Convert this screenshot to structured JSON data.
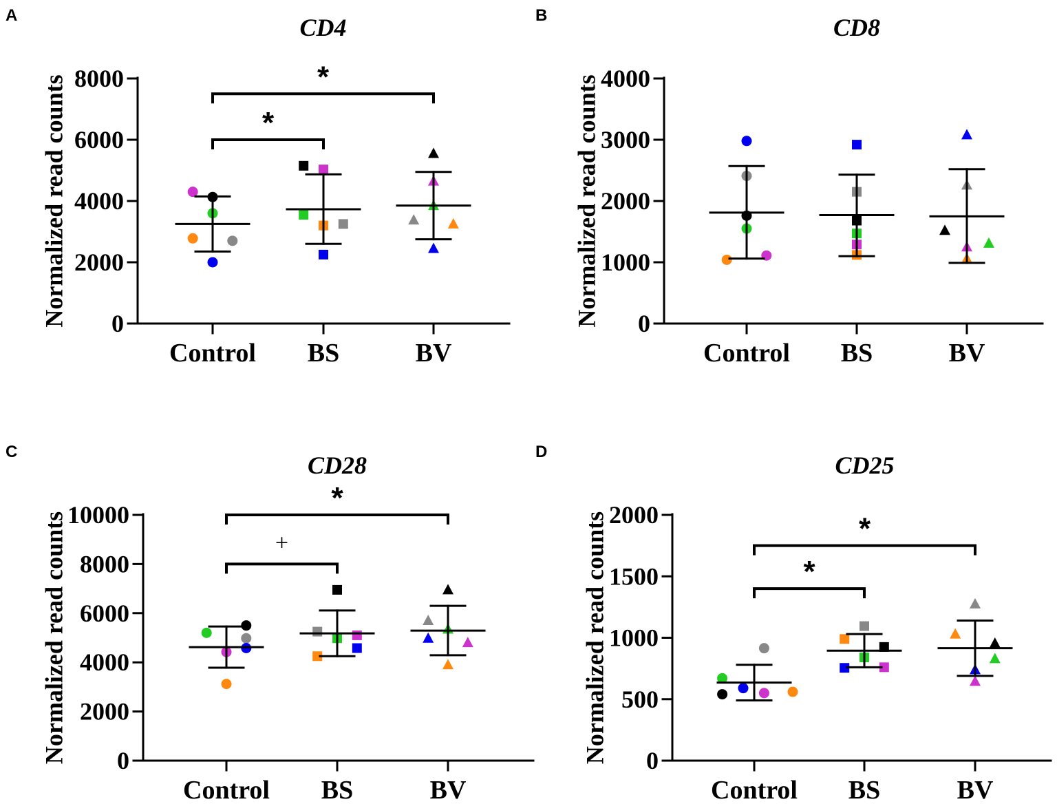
{
  "figure": {
    "panels": [
      "A",
      "B",
      "C",
      "D"
    ]
  },
  "chart_data": [
    {
      "panel": "A",
      "type": "scatter",
      "title": "CD4",
      "ylabel": "Normalized read counts",
      "xlabel": "",
      "ylim": [
        0,
        8000
      ],
      "yticks": [
        0,
        2000,
        4000,
        6000,
        8000
      ],
      "categories": [
        "Control",
        "BS",
        "BV"
      ],
      "groups": [
        {
          "name": "Control",
          "marker": "circle",
          "mean": 3250,
          "sd_low": 2350,
          "sd_high": 4150,
          "points": [
            {
              "color": "#cc33cc",
              "value": 4300,
              "offset": -0.18
            },
            {
              "color": "#000000",
              "value": 4130,
              "offset": 0.0
            },
            {
              "color": "#22cc22",
              "value": 3600,
              "offset": 0.0
            },
            {
              "color": "#ff8811",
              "value": 2780,
              "offset": -0.18
            },
            {
              "color": "#888888",
              "value": 2700,
              "offset": 0.18
            },
            {
              "color": "#0000ee",
              "value": 2000,
              "offset": 0.0
            }
          ]
        },
        {
          "name": "BS",
          "marker": "square",
          "mean": 3730,
          "sd_low": 2600,
          "sd_high": 4870,
          "points": [
            {
              "color": "#000000",
              "value": 5150,
              "offset": -0.18
            },
            {
              "color": "#cc33cc",
              "value": 5030,
              "offset": 0.0
            },
            {
              "color": "#22cc22",
              "value": 3550,
              "offset": -0.18
            },
            {
              "color": "#ff8811",
              "value": 3200,
              "offset": 0.0
            },
            {
              "color": "#888888",
              "value": 3250,
              "offset": 0.18
            },
            {
              "color": "#0000ee",
              "value": 2250,
              "offset": 0.0
            }
          ]
        },
        {
          "name": "BV",
          "marker": "triangle",
          "mean": 3850,
          "sd_low": 2750,
          "sd_high": 4950,
          "points": [
            {
              "color": "#000000",
              "value": 5550,
              "offset": 0.0
            },
            {
              "color": "#cc33cc",
              "value": 4650,
              "offset": 0.0
            },
            {
              "color": "#22cc22",
              "value": 3850,
              "offset": 0.0
            },
            {
              "color": "#888888",
              "value": 3380,
              "offset": -0.18
            },
            {
              "color": "#ff8811",
              "value": 3250,
              "offset": 0.18
            },
            {
              "color": "#0000ee",
              "value": 2450,
              "offset": 0.0
            }
          ]
        }
      ],
      "annotations": [
        {
          "from": "Control",
          "to": "BS",
          "label": "*",
          "level": 6000
        },
        {
          "from": "Control",
          "to": "BV",
          "label": "*",
          "level": 7500
        }
      ]
    },
    {
      "panel": "B",
      "type": "scatter",
      "title": "CD8",
      "ylabel": "Normalized read counts",
      "xlabel": "",
      "ylim": [
        0,
        4000
      ],
      "yticks": [
        0,
        1000,
        2000,
        3000,
        4000
      ],
      "categories": [
        "Control",
        "BS",
        "BV"
      ],
      "groups": [
        {
          "name": "Control",
          "marker": "circle",
          "mean": 1810,
          "sd_low": 1060,
          "sd_high": 2570,
          "points": [
            {
              "color": "#0000ee",
              "value": 2980,
              "offset": 0.0
            },
            {
              "color": "#888888",
              "value": 2410,
              "offset": 0.0
            },
            {
              "color": "#000000",
              "value": 1760,
              "offset": 0.0
            },
            {
              "color": "#22cc22",
              "value": 1550,
              "offset": 0.0
            },
            {
              "color": "#cc33cc",
              "value": 1110,
              "offset": 0.18
            },
            {
              "color": "#ff8811",
              "value": 1040,
              "offset": -0.18
            }
          ]
        },
        {
          "name": "BS",
          "marker": "square",
          "mean": 1770,
          "sd_low": 1100,
          "sd_high": 2430,
          "points": [
            {
              "color": "#0000ee",
              "value": 2920,
              "offset": 0.0
            },
            {
              "color": "#888888",
              "value": 2150,
              "offset": 0.0
            },
            {
              "color": "#000000",
              "value": 1680,
              "offset": 0.0
            },
            {
              "color": "#22cc22",
              "value": 1470,
              "offset": 0.0
            },
            {
              "color": "#cc33cc",
              "value": 1290,
              "offset": 0.0
            },
            {
              "color": "#ff8811",
              "value": 1120,
              "offset": 0.0
            }
          ]
        },
        {
          "name": "BV",
          "marker": "triangle",
          "mean": 1750,
          "sd_low": 990,
          "sd_high": 2520,
          "points": [
            {
              "color": "#0000ee",
              "value": 3080,
              "offset": 0.0
            },
            {
              "color": "#888888",
              "value": 2260,
              "offset": 0.0
            },
            {
              "color": "#000000",
              "value": 1520,
              "offset": -0.2
            },
            {
              "color": "#22cc22",
              "value": 1310,
              "offset": 0.2
            },
            {
              "color": "#cc33cc",
              "value": 1250,
              "offset": 0.0
            },
            {
              "color": "#ff8811",
              "value": 1060,
              "offset": 0.0
            }
          ]
        }
      ],
      "annotations": []
    },
    {
      "panel": "C",
      "type": "scatter",
      "title": "CD28",
      "ylabel": "Normalized read counts",
      "xlabel": "",
      "ylim": [
        0,
        10000
      ],
      "yticks": [
        0,
        2000,
        4000,
        6000,
        8000,
        10000
      ],
      "categories": [
        "Control",
        "BS",
        "BV"
      ],
      "groups": [
        {
          "name": "Control",
          "marker": "circle",
          "mean": 4620,
          "sd_low": 3780,
          "sd_high": 5460,
          "points": [
            {
              "color": "#000000",
              "value": 5500,
              "offset": 0.18
            },
            {
              "color": "#22cc22",
              "value": 5200,
              "offset": -0.18
            },
            {
              "color": "#888888",
              "value": 4980,
              "offset": 0.18
            },
            {
              "color": "#0000ee",
              "value": 4580,
              "offset": 0.18
            },
            {
              "color": "#cc33cc",
              "value": 4420,
              "offset": 0.0
            },
            {
              "color": "#ff8811",
              "value": 3120,
              "offset": 0.0
            }
          ]
        },
        {
          "name": "BS",
          "marker": "square",
          "mean": 5180,
          "sd_low": 4250,
          "sd_high": 6110,
          "points": [
            {
              "color": "#000000",
              "value": 6950,
              "offset": 0.0
            },
            {
              "color": "#888888",
              "value": 5250,
              "offset": -0.18
            },
            {
              "color": "#cc33cc",
              "value": 5100,
              "offset": 0.18
            },
            {
              "color": "#22cc22",
              "value": 4980,
              "offset": 0.0
            },
            {
              "color": "#0000ee",
              "value": 4580,
              "offset": 0.18
            },
            {
              "color": "#ff8811",
              "value": 4250,
              "offset": -0.18
            }
          ]
        },
        {
          "name": "BV",
          "marker": "triangle",
          "mean": 5290,
          "sd_low": 4290,
          "sd_high": 6300,
          "points": [
            {
              "color": "#000000",
              "value": 6950,
              "offset": 0.0
            },
            {
              "color": "#888888",
              "value": 5700,
              "offset": -0.18
            },
            {
              "color": "#22cc22",
              "value": 5350,
              "offset": 0.0
            },
            {
              "color": "#0000ee",
              "value": 4980,
              "offset": -0.18
            },
            {
              "color": "#cc33cc",
              "value": 4800,
              "offset": 0.18
            },
            {
              "color": "#ff8811",
              "value": 3900,
              "offset": 0.0
            }
          ]
        }
      ],
      "annotations": [
        {
          "from": "Control",
          "to": "BS",
          "label": "+",
          "level": 8000
        },
        {
          "from": "Control",
          "to": "BV",
          "label": "*",
          "level": 10000
        }
      ]
    },
    {
      "panel": "D",
      "type": "scatter",
      "title": "CD25",
      "ylabel": "Normalized read counts",
      "xlabel": "",
      "ylim": [
        0,
        2000
      ],
      "yticks": [
        0,
        500,
        1000,
        1500,
        2000
      ],
      "categories": [
        "Control",
        "BS",
        "BV"
      ],
      "groups": [
        {
          "name": "Control",
          "marker": "circle",
          "mean": 635,
          "sd_low": 490,
          "sd_high": 780,
          "points": [
            {
              "color": "#888888",
              "value": 915,
              "offset": 0.09
            },
            {
              "color": "#22cc22",
              "value": 670,
              "offset": -0.29
            },
            {
              "color": "#0000ee",
              "value": 590,
              "offset": -0.1
            },
            {
              "color": "#ff8811",
              "value": 560,
              "offset": 0.35
            },
            {
              "color": "#cc33cc",
              "value": 550,
              "offset": 0.09
            },
            {
              "color": "#000000",
              "value": 540,
              "offset": -0.29
            }
          ]
        },
        {
          "name": "BS",
          "marker": "square",
          "mean": 895,
          "sd_low": 760,
          "sd_high": 1030,
          "points": [
            {
              "color": "#888888",
              "value": 1095,
              "offset": 0.0
            },
            {
              "color": "#ff8811",
              "value": 990,
              "offset": -0.18
            },
            {
              "color": "#000000",
              "value": 925,
              "offset": 0.18
            },
            {
              "color": "#22cc22",
              "value": 840,
              "offset": 0.0
            },
            {
              "color": "#cc33cc",
              "value": 760,
              "offset": 0.18
            },
            {
              "color": "#0000ee",
              "value": 755,
              "offset": -0.18
            }
          ]
        },
        {
          "name": "BV",
          "marker": "triangle",
          "mean": 915,
          "sd_low": 690,
          "sd_high": 1140,
          "points": [
            {
              "color": "#888888",
              "value": 1275,
              "offset": 0.0
            },
            {
              "color": "#ff8811",
              "value": 1030,
              "offset": -0.18
            },
            {
              "color": "#000000",
              "value": 955,
              "offset": 0.18
            },
            {
              "color": "#22cc22",
              "value": 830,
              "offset": 0.18
            },
            {
              "color": "#0000ee",
              "value": 740,
              "offset": 0.0
            },
            {
              "color": "#cc33cc",
              "value": 645,
              "offset": 0.0
            }
          ]
        }
      ],
      "annotations": [
        {
          "from": "Control",
          "to": "BS",
          "label": "*",
          "level": 1400
        },
        {
          "from": "Control",
          "to": "BV",
          "label": "*",
          "level": 1750
        }
      ]
    }
  ]
}
